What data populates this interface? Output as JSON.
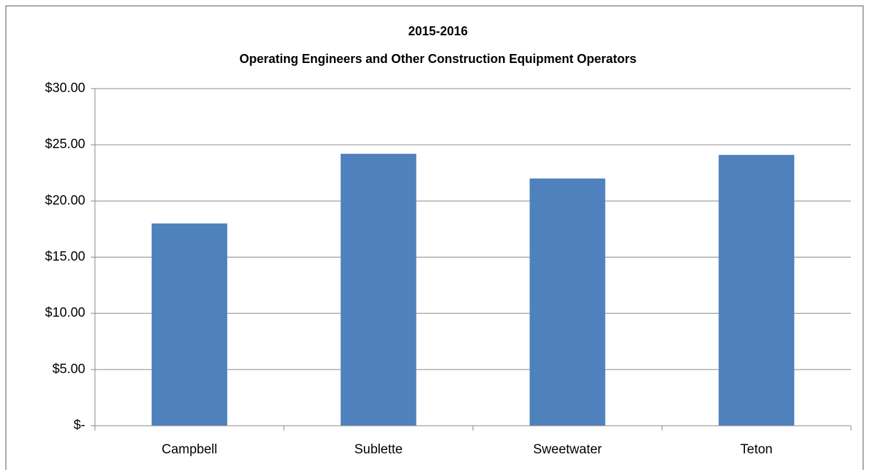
{
  "chart_data": {
    "type": "bar",
    "title": "2015-2016",
    "subtitle": "Operating Engineers and Other Construction Equipment Operators",
    "categories": [
      "Campbell",
      "Sublette",
      "Sweetwater",
      "Teton"
    ],
    "values": [
      18.0,
      24.2,
      22.0,
      24.1
    ],
    "color": "#4f81bd",
    "ylim": [
      0,
      30
    ],
    "yticks": [
      {
        "value": 0,
        "label": "$-"
      },
      {
        "value": 5,
        "label": "$5.00"
      },
      {
        "value": 10,
        "label": "$10.00"
      },
      {
        "value": 15,
        "label": "$15.00"
      },
      {
        "value": 20,
        "label": "$20.00"
      },
      {
        "value": 25,
        "label": "$25.00"
      },
      {
        "value": 30,
        "label": "$30.00"
      }
    ],
    "grid": true
  }
}
